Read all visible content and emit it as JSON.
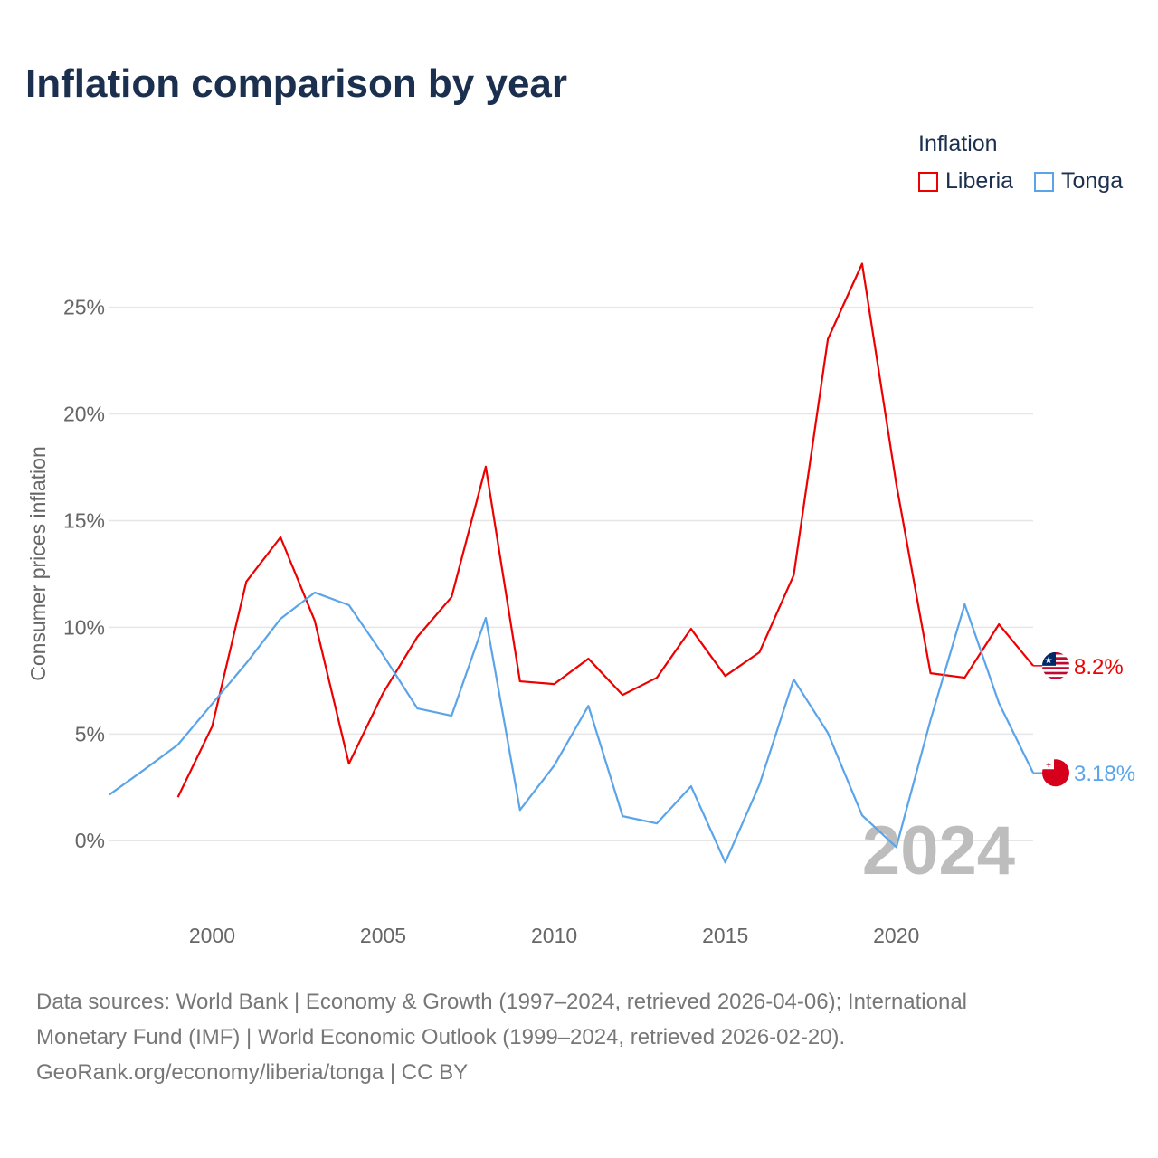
{
  "chart_data": {
    "type": "line",
    "title": "Inflation comparison by year",
    "ylabel": "Consumer prices inflation",
    "xlabel": "",
    "xlim": [
      1997,
      2024
    ],
    "ylim": [
      -3,
      28.8
    ],
    "x_ticks": [
      2000,
      2005,
      2010,
      2015,
      2020
    ],
    "y_ticks": [
      0,
      5,
      10,
      15,
      20,
      25
    ],
    "y_tick_labels": [
      "0%",
      "5%",
      "10%",
      "15%",
      "20%",
      "25%"
    ],
    "grid": true,
    "legend_title": "Inflation",
    "legend_position": "top-right",
    "year_watermark": "2024",
    "series": [
      {
        "name": "Liberia",
        "color": "#ee0000",
        "end_label": "8.2%",
        "x": [
          1999,
          2000,
          2001,
          2002,
          2003,
          2004,
          2005,
          2006,
          2007,
          2008,
          2009,
          2010,
          2011,
          2012,
          2013,
          2014,
          2015,
          2016,
          2017,
          2018,
          2019,
          2020,
          2021,
          2022,
          2023,
          2024
        ],
        "values": [
          2.04,
          5.35,
          12.14,
          14.22,
          10.31,
          3.61,
          6.92,
          9.55,
          11.42,
          17.53,
          7.47,
          7.34,
          8.53,
          6.83,
          7.64,
          9.93,
          7.72,
          8.83,
          12.44,
          23.51,
          27.04,
          16.72,
          7.85,
          7.64,
          10.14,
          8.2
        ]
      },
      {
        "name": "Tonga",
        "color": "#5ba4ea",
        "end_label": "3.18%",
        "x": [
          1997,
          1998,
          1999,
          2000,
          2001,
          2002,
          2003,
          2004,
          2005,
          2006,
          2007,
          2008,
          2009,
          2010,
          2011,
          2012,
          2013,
          2014,
          2015,
          2016,
          2017,
          2018,
          2019,
          2020,
          2021,
          2022,
          2023,
          2024
        ],
        "values": [
          2.16,
          3.31,
          4.5,
          6.41,
          8.32,
          10.4,
          11.63,
          11.04,
          8.7,
          6.2,
          5.86,
          10.44,
          1.44,
          3.52,
          6.32,
          1.15,
          0.81,
          2.55,
          -1.02,
          2.63,
          7.56,
          5.05,
          1.19,
          -0.3,
          5.65,
          11.08,
          6.45,
          3.18
        ]
      }
    ]
  },
  "sources": {
    "line1": "Data sources: World Bank | Economy & Growth (1997–2024, retrieved 2026-04-06); International",
    "line2": "Monetary Fund (IMF) | World Economic Outlook (1999–2024, retrieved 2026-02-20).",
    "line3": "GeoRank.org/economy/liberia/tonga | CC BY"
  }
}
